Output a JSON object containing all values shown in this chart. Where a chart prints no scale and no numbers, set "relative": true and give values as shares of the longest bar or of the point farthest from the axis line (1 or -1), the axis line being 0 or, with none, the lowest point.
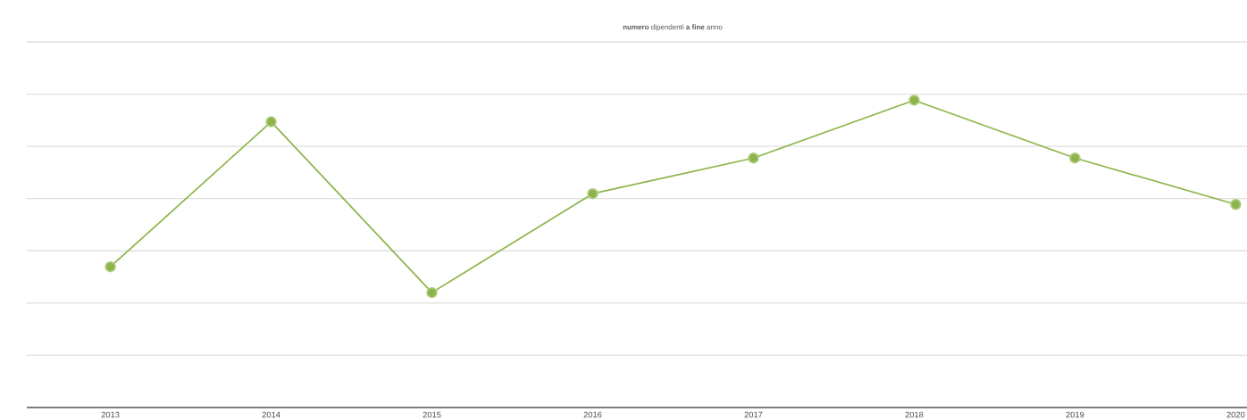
{
  "chart_data": {
    "type": "line",
    "title": "**numero** dipendenti **a fine** anno",
    "relative": true,
    "categories": [
      "2013",
      "2014",
      "2015",
      "2016",
      "2017",
      "2018",
      "2019",
      "2020"
    ],
    "series": [
      {
        "color": "#8db44a",
        "values": [
          0.458,
          0.93,
          0.374,
          0.696,
          0.812,
          1,
          0.812,
          0.661
        ]
      }
    ],
    "grid": "y",
    "marker": "circle",
    "line_style": "solid"
  }
}
